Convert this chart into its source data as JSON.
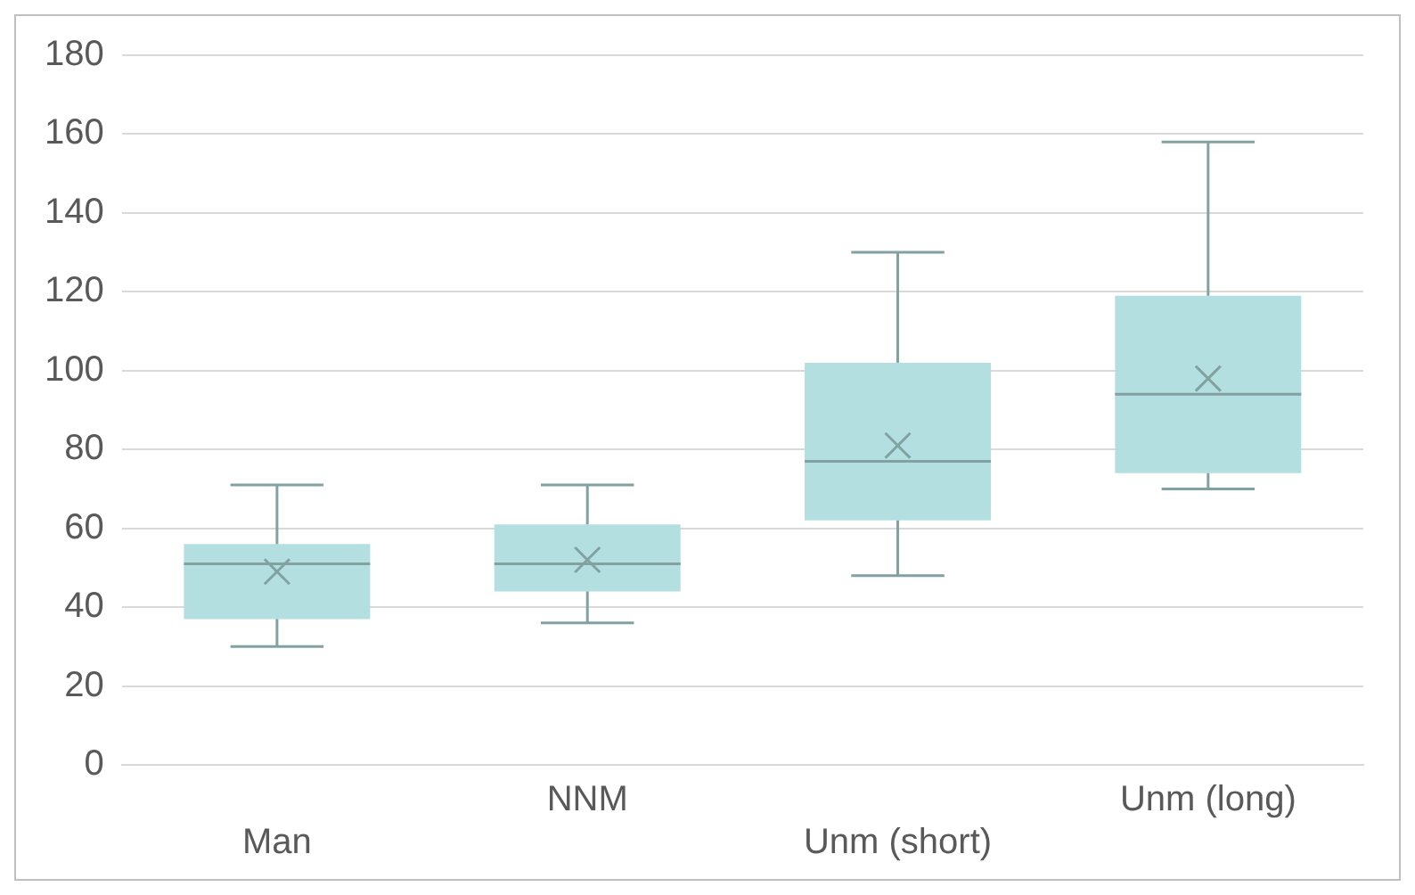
{
  "chart_data": {
    "type": "box",
    "categories": [
      "Man",
      "NNM",
      "Unm (short)",
      "Unm (long)"
    ],
    "boxes": [
      {
        "low": 30,
        "q1": 37,
        "median": 51,
        "q3": 56,
        "high": 71,
        "mean": 49
      },
      {
        "low": 36,
        "q1": 44,
        "median": 51,
        "q3": 61,
        "high": 71,
        "mean": 52
      },
      {
        "low": 48,
        "q1": 62,
        "median": 77,
        "q3": 102,
        "high": 130,
        "mean": 81
      },
      {
        "low": 70,
        "q1": 74,
        "median": 94,
        "q3": 119,
        "high": 158,
        "mean": 98
      }
    ],
    "color": "#b4dfe0",
    "ylim": [
      0,
      180
    ],
    "yticks": [
      0,
      20,
      40,
      60,
      80,
      100,
      120,
      140,
      160,
      180
    ],
    "grid": "y",
    "legend": false,
    "marker": "cross"
  }
}
